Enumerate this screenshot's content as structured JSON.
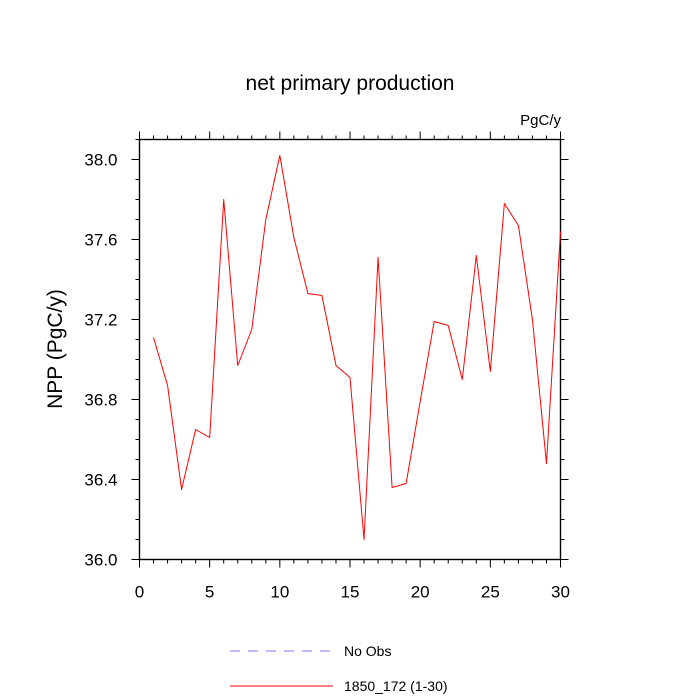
{
  "chart_data": {
    "type": "line",
    "title": "net primary production",
    "units_label": "PgC/y",
    "xlabel": "",
    "ylabel": "NPP  (PgC/y)",
    "xlim": [
      0,
      30
    ],
    "ylim": [
      36.0,
      38.1
    ],
    "x_ticks": [
      0,
      5,
      10,
      15,
      20,
      25,
      30
    ],
    "y_ticks": [
      36.0,
      36.4,
      36.8,
      37.2,
      37.6,
      38.0
    ],
    "y_tick_labels": [
      "36.0",
      "36.4",
      "36.8",
      "37.2",
      "37.6",
      "38.0"
    ],
    "grid": false,
    "legend_placement": "bottom",
    "series": [
      {
        "name": "1850_172 (1-30)",
        "color": "#ff0000",
        "style": "solid",
        "x": [
          1,
          2,
          3,
          4,
          5,
          6,
          7,
          8,
          9,
          10,
          11,
          12,
          13,
          14,
          15,
          16,
          17,
          18,
          19,
          20,
          21,
          22,
          23,
          24,
          25,
          26,
          27,
          28,
          29,
          30
        ],
        "y": [
          37.11,
          36.87,
          36.35,
          36.65,
          36.61,
          37.8,
          36.97,
          37.15,
          37.7,
          38.02,
          37.61,
          37.33,
          37.32,
          36.97,
          36.91,
          36.1,
          37.51,
          36.36,
          36.38,
          36.79,
          37.19,
          37.17,
          36.9,
          37.52,
          36.94,
          37.78,
          37.67,
          37.2,
          36.48,
          37.64
        ]
      }
    ],
    "legend": [
      {
        "label": "No Obs",
        "color": "#7a7aff",
        "style": "dashed"
      },
      {
        "label": "1850_172 (1-30)",
        "color": "#ff0000",
        "style": "solid"
      }
    ]
  }
}
